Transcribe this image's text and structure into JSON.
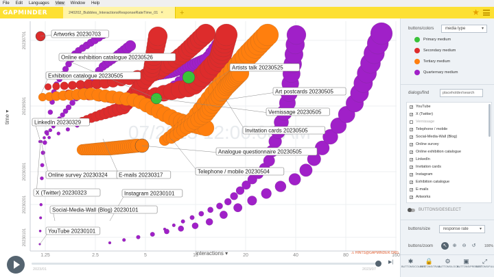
{
  "menu": [
    "File",
    "Edit",
    "Languages",
    "View",
    "Window",
    "Help"
  ],
  "menu_active": "View",
  "app": {
    "logo": "GAPMINDER",
    "tab_label": "240202_Bubbles_InteractionsResponseRateTime_01",
    "tab_close": "×",
    "tab_add": "+",
    "star": "★"
  },
  "chart_data": {
    "type": "scatter",
    "title": "",
    "xlabel": "interactions",
    "ylabel": "time",
    "x_scale": "log",
    "x_ticks": [
      "1.25",
      "2.5",
      "5",
      "10",
      "20",
      "40",
      "80",
      "160"
    ],
    "y_ticks": [
      "20230101",
      "20230201",
      "20230301",
      "20230501",
      "20230701"
    ],
    "watermark": "07/2023 12:00:00 AM",
    "series": [
      {
        "label": "Artworks 20230703",
        "x": 1.3,
        "y": "20230703",
        "color": "#dd2c2c"
      },
      {
        "label": "Online exhibition catalogue 20230526",
        "x": 7,
        "y": "20230526",
        "color": "#a020c8"
      },
      {
        "label": "Exhibition catalogue 20230505",
        "x": 1.3,
        "y": "20230505",
        "color": "#ff7f0e"
      },
      {
        "label": "Artists talk 20230525",
        "x": 40,
        "y": "20230525",
        "color": "#ff7f0e"
      },
      {
        "label": "Art postcards 20230505",
        "x": 55,
        "y": "20230505",
        "color": "#dd2c2c"
      },
      {
        "label": "Vernissage 20230505",
        "x": 12,
        "y": "20230505",
        "color": "#dd2c2c"
      },
      {
        "label": "LinkedIn 20230329",
        "x": 1.3,
        "y": "20230329",
        "color": "#a020c8"
      },
      {
        "label": "Invitation cards 20230505",
        "x": 40,
        "y": "20230505",
        "color": "#ff7f0e"
      },
      {
        "label": "Analogue questionnaire 20230505",
        "x": 22,
        "y": "20230505",
        "color": "#ff7f0e"
      },
      {
        "label": "Telephone / mobile 20230504",
        "x": 30,
        "y": "20230504",
        "color": "#a020c8"
      },
      {
        "label": "Online survey 20230324",
        "x": 1.3,
        "y": "20230324",
        "color": "#a020c8"
      },
      {
        "label": "E-mails 20230317",
        "x": 2.5,
        "y": "20230317",
        "color": "#a020c8"
      },
      {
        "label": "X (Twitter) 20230323",
        "x": 1.3,
        "y": "20230323",
        "color": "#a020c8"
      },
      {
        "label": "Instagram 20230101",
        "x": 6,
        "y": "20230101",
        "color": "#a020c8"
      },
      {
        "label": "Social-Media-Wall (Blog) 20230101",
        "x": 3,
        "y": "20230101",
        "color": "#a020c8"
      },
      {
        "label": "YouTube 20230101",
        "x": 2,
        "y": "20230101",
        "color": "#a020c8"
      }
    ],
    "legend_placement": "right-panel",
    "grid": true
  },
  "chart_link": "⚠ HINTS@GAPMINDER.ORG",
  "timeline": {
    "start": "2023/01",
    "end": "2023/07",
    "position": 0.99
  },
  "panel": {
    "colors_title": "buttons/colors",
    "colors_select": "media type",
    "legend": [
      {
        "label": "Primary medium",
        "color": "#3ac23a"
      },
      {
        "label": "Secondary medium",
        "color": "#dd2c2c"
      },
      {
        "label": "Tertiary medium",
        "color": "#ff7f0e"
      },
      {
        "label": "Quarternary medium",
        "color": "#a020c8"
      }
    ],
    "find_title": "dialogs/find",
    "find_placeholder": "placeholder/search",
    "items": [
      {
        "label": "YouTube",
        "checked": true
      },
      {
        "label": "X (Twitter)",
        "checked": true
      },
      {
        "label": "Vernissage",
        "checked": false
      },
      {
        "label": "Telephone / mobile",
        "checked": true
      },
      {
        "label": "Social-Media-Wall (Blog)",
        "checked": true
      },
      {
        "label": "Online survey",
        "checked": true
      },
      {
        "label": "Online exhibition catalogue",
        "checked": true
      },
      {
        "label": "LinkedIn",
        "checked": true
      },
      {
        "label": "Invitation cards",
        "checked": true
      },
      {
        "label": "Instagram",
        "checked": true
      },
      {
        "label": "Exhibition catalogue",
        "checked": true
      },
      {
        "label": "E-mails",
        "checked": true
      },
      {
        "label": "Artworks",
        "checked": true
      }
    ],
    "deselect": "BUTTONS/DESELECT",
    "size_title": "buttons/size",
    "size_select": "response rate",
    "zoom_title": "buttons/zoom",
    "zoom_pct": "100%",
    "bottom_tabs": [
      {
        "icon": "✱",
        "label": "BUTTONS/COLORS"
      },
      {
        "icon": "🔒",
        "label": "BUTTONS/TRAIL"
      },
      {
        "icon": "⚙",
        "label": "BUTTONS/LOCK"
      },
      {
        "icon": "▣",
        "label": "BUTTONS/PRESENT"
      },
      {
        "icon": "⤢",
        "label": "BUTTONS/FULL"
      }
    ]
  }
}
